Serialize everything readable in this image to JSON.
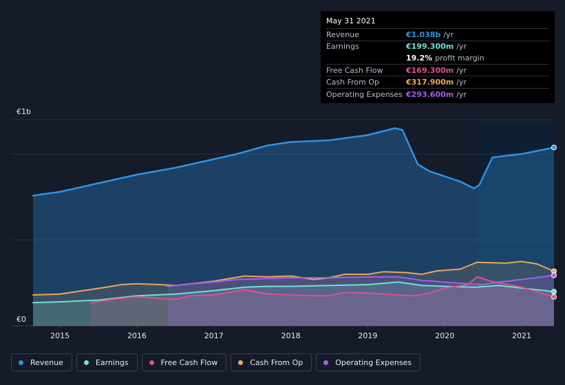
{
  "tooltip": {
    "date": "May 31 2021",
    "rows": [
      {
        "label": "Revenue",
        "value": "€1.038b",
        "unit": "/yr",
        "color": "#2e93e6"
      },
      {
        "label": "Earnings",
        "value": "€199.300m",
        "unit": "/yr",
        "color": "#6fe3d0"
      },
      {
        "label": "",
        "value": "19.2%",
        "unit": "profit margin",
        "color": "#ffffff"
      },
      {
        "label": "Free Cash Flow",
        "value": "€169.300m",
        "unit": "/yr",
        "color": "#e0508d"
      },
      {
        "label": "Cash From Op",
        "value": "€317.900m",
        "unit": "/yr",
        "color": "#e9a95a"
      },
      {
        "label": "Operating Expenses",
        "value": "€293.600m",
        "unit": "/yr",
        "color": "#a45df0"
      }
    ]
  },
  "chart_data": {
    "type": "area",
    "ylim": [
      0,
      1.2
    ],
    "y_unit": "€b",
    "yticks": [
      {
        "value": 1.2,
        "label": "€1b"
      },
      {
        "value": 0,
        "label": "€0"
      }
    ],
    "xlim": [
      2014.65,
      2021.42
    ],
    "xticks": [
      "2015",
      "2016",
      "2017",
      "2018",
      "2019",
      "2020",
      "2021"
    ],
    "grid": true,
    "legend_position": "bottom",
    "highlight_start": 2020.42,
    "series": [
      {
        "name": "Revenue",
        "color": "#2e93e6",
        "start": 2014.65,
        "values": [
          [
            2014.65,
            0.758
          ],
          [
            2015.0,
            0.78
          ],
          [
            2015.5,
            0.83
          ],
          [
            2016.0,
            0.88
          ],
          [
            2016.5,
            0.92
          ],
          [
            2017.0,
            0.97
          ],
          [
            2017.3,
            1.0
          ],
          [
            2017.7,
            1.05
          ],
          [
            2018.0,
            1.07
          ],
          [
            2018.5,
            1.08
          ],
          [
            2019.0,
            1.11
          ],
          [
            2019.35,
            1.15
          ],
          [
            2019.45,
            1.14
          ],
          [
            2019.65,
            0.94
          ],
          [
            2019.8,
            0.9
          ],
          [
            2020.0,
            0.87
          ],
          [
            2020.2,
            0.84
          ],
          [
            2020.38,
            0.8
          ],
          [
            2020.45,
            0.82
          ],
          [
            2020.62,
            0.98
          ],
          [
            2020.8,
            0.99
          ],
          [
            2021.0,
            1.0
          ],
          [
            2021.42,
            1.038
          ]
        ]
      },
      {
        "name": "Earnings",
        "color": "#6fe3d0",
        "start": 2014.65,
        "values": [
          [
            2014.65,
            0.135
          ],
          [
            2015.0,
            0.14
          ],
          [
            2015.5,
            0.15
          ],
          [
            2016.0,
            0.175
          ],
          [
            2016.5,
            0.185
          ],
          [
            2017.0,
            0.205
          ],
          [
            2017.4,
            0.225
          ],
          [
            2017.7,
            0.23
          ],
          [
            2018.0,
            0.23
          ],
          [
            2018.5,
            0.235
          ],
          [
            2019.0,
            0.24
          ],
          [
            2019.4,
            0.255
          ],
          [
            2019.7,
            0.235
          ],
          [
            2020.0,
            0.23
          ],
          [
            2020.4,
            0.225
          ],
          [
            2020.7,
            0.235
          ],
          [
            2021.0,
            0.22
          ],
          [
            2021.42,
            0.199
          ]
        ]
      },
      {
        "name": "Free Cash Flow",
        "color": "#e0508d",
        "start": 2015.4,
        "values": [
          [
            2015.4,
            0.135
          ],
          [
            2015.7,
            0.155
          ],
          [
            2016.0,
            0.17
          ],
          [
            2016.3,
            0.16
          ],
          [
            2016.5,
            0.155
          ],
          [
            2016.7,
            0.175
          ],
          [
            2017.0,
            0.18
          ],
          [
            2017.4,
            0.21
          ],
          [
            2017.7,
            0.185
          ],
          [
            2018.0,
            0.18
          ],
          [
            2018.3,
            0.175
          ],
          [
            2018.5,
            0.175
          ],
          [
            2018.7,
            0.195
          ],
          [
            2019.0,
            0.19
          ],
          [
            2019.4,
            0.18
          ],
          [
            2019.6,
            0.175
          ],
          [
            2019.8,
            0.19
          ],
          [
            2020.0,
            0.22
          ],
          [
            2020.3,
            0.24
          ],
          [
            2020.42,
            0.285
          ],
          [
            2020.6,
            0.26
          ],
          [
            2021.0,
            0.225
          ],
          [
            2021.42,
            0.169
          ]
        ]
      },
      {
        "name": "Cash From Op",
        "color": "#e9a95a",
        "start": 2014.65,
        "values": [
          [
            2014.65,
            0.18
          ],
          [
            2015.0,
            0.185
          ],
          [
            2015.3,
            0.205
          ],
          [
            2015.6,
            0.225
          ],
          [
            2015.8,
            0.24
          ],
          [
            2016.0,
            0.245
          ],
          [
            2016.3,
            0.24
          ],
          [
            2016.5,
            0.235
          ],
          [
            2016.7,
            0.245
          ],
          [
            2017.0,
            0.26
          ],
          [
            2017.4,
            0.29
          ],
          [
            2017.7,
            0.285
          ],
          [
            2018.0,
            0.29
          ],
          [
            2018.3,
            0.27
          ],
          [
            2018.5,
            0.28
          ],
          [
            2018.7,
            0.3
          ],
          [
            2019.0,
            0.3
          ],
          [
            2019.2,
            0.315
          ],
          [
            2019.5,
            0.31
          ],
          [
            2019.7,
            0.3
          ],
          [
            2019.9,
            0.32
          ],
          [
            2020.2,
            0.33
          ],
          [
            2020.42,
            0.37
          ],
          [
            2020.8,
            0.365
          ],
          [
            2021.0,
            0.375
          ],
          [
            2021.2,
            0.36
          ],
          [
            2021.42,
            0.318
          ]
        ]
      },
      {
        "name": "Operating Expenses",
        "color": "#a45df0",
        "start": 2016.4,
        "values": [
          [
            2016.4,
            0.23
          ],
          [
            2016.7,
            0.245
          ],
          [
            2017.0,
            0.255
          ],
          [
            2017.3,
            0.27
          ],
          [
            2017.7,
            0.275
          ],
          [
            2018.0,
            0.28
          ],
          [
            2018.5,
            0.28
          ],
          [
            2019.0,
            0.285
          ],
          [
            2019.4,
            0.285
          ],
          [
            2019.7,
            0.265
          ],
          [
            2020.0,
            0.255
          ],
          [
            2020.3,
            0.245
          ],
          [
            2020.5,
            0.24
          ],
          [
            2020.7,
            0.255
          ],
          [
            2021.0,
            0.27
          ],
          [
            2021.42,
            0.294
          ]
        ]
      }
    ]
  },
  "legend": {
    "items": [
      {
        "label": "Revenue",
        "color": "#2e93e6"
      },
      {
        "label": "Earnings",
        "color": "#6fe3d0"
      },
      {
        "label": "Free Cash Flow",
        "color": "#e0508d"
      },
      {
        "label": "Cash From Op",
        "color": "#e9a95a"
      },
      {
        "label": "Operating Expenses",
        "color": "#a45df0"
      }
    ]
  }
}
